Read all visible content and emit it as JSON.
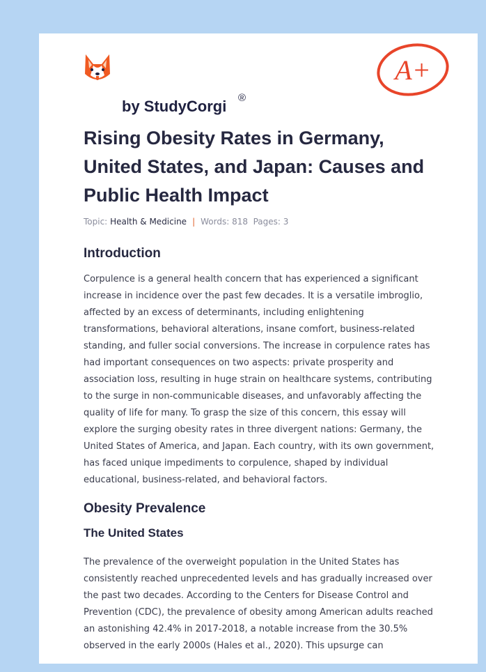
{
  "header": {
    "brand": "by StudyCorgi",
    "registered": "®",
    "grade": "A+"
  },
  "title": "Rising Obesity Rates in Germany, United States, and Japan: Causes and Public Health Impact",
  "meta": {
    "topic_label": "Topic:",
    "topic": "Health & Medicine",
    "separator": "|",
    "words": "Words: 818",
    "pages": "Pages: 3"
  },
  "sections": [
    {
      "heading": "Introduction",
      "paragraph": "Corpulence is a general health concern that has experienced a significant increase in incidence over the past few decades. It is a versatile imbroglio, affected by an excess of determinants, including enlightening transformations, behavioral alterations, insane comfort, business-related standing, and fuller social conversions. The increase in corpulence rates has had important consequences on two aspects: private prosperity and association loss, resulting in huge strain on healthcare systems, contributing to the surge in non-communicable diseases, and unfavorably affecting the quality of life for many. To grasp the size of this concern, this essay will explore the surging obesity rates in three divergent nations: Germany, the United States of America, and Japan. Each country, with its own government, has faced unique impediments to corpulence, shaped by individual educational, business-related, and behavioral factors."
    },
    {
      "heading": "Obesity Prevalence",
      "subheading": "The United States",
      "paragraph": "The prevalence of the overweight population in the United States has consistently reached unprecedented levels and has gradually increased over the past two decades. According to the Centers for Disease Control and Prevention (CDC), the prevalence of obesity among American adults reached an astonishing 42.4% in 2017-2018, a notable increase from the 30.5% observed in the early 2000s (Hales et al., 2020). This upsurge can"
    }
  ]
}
